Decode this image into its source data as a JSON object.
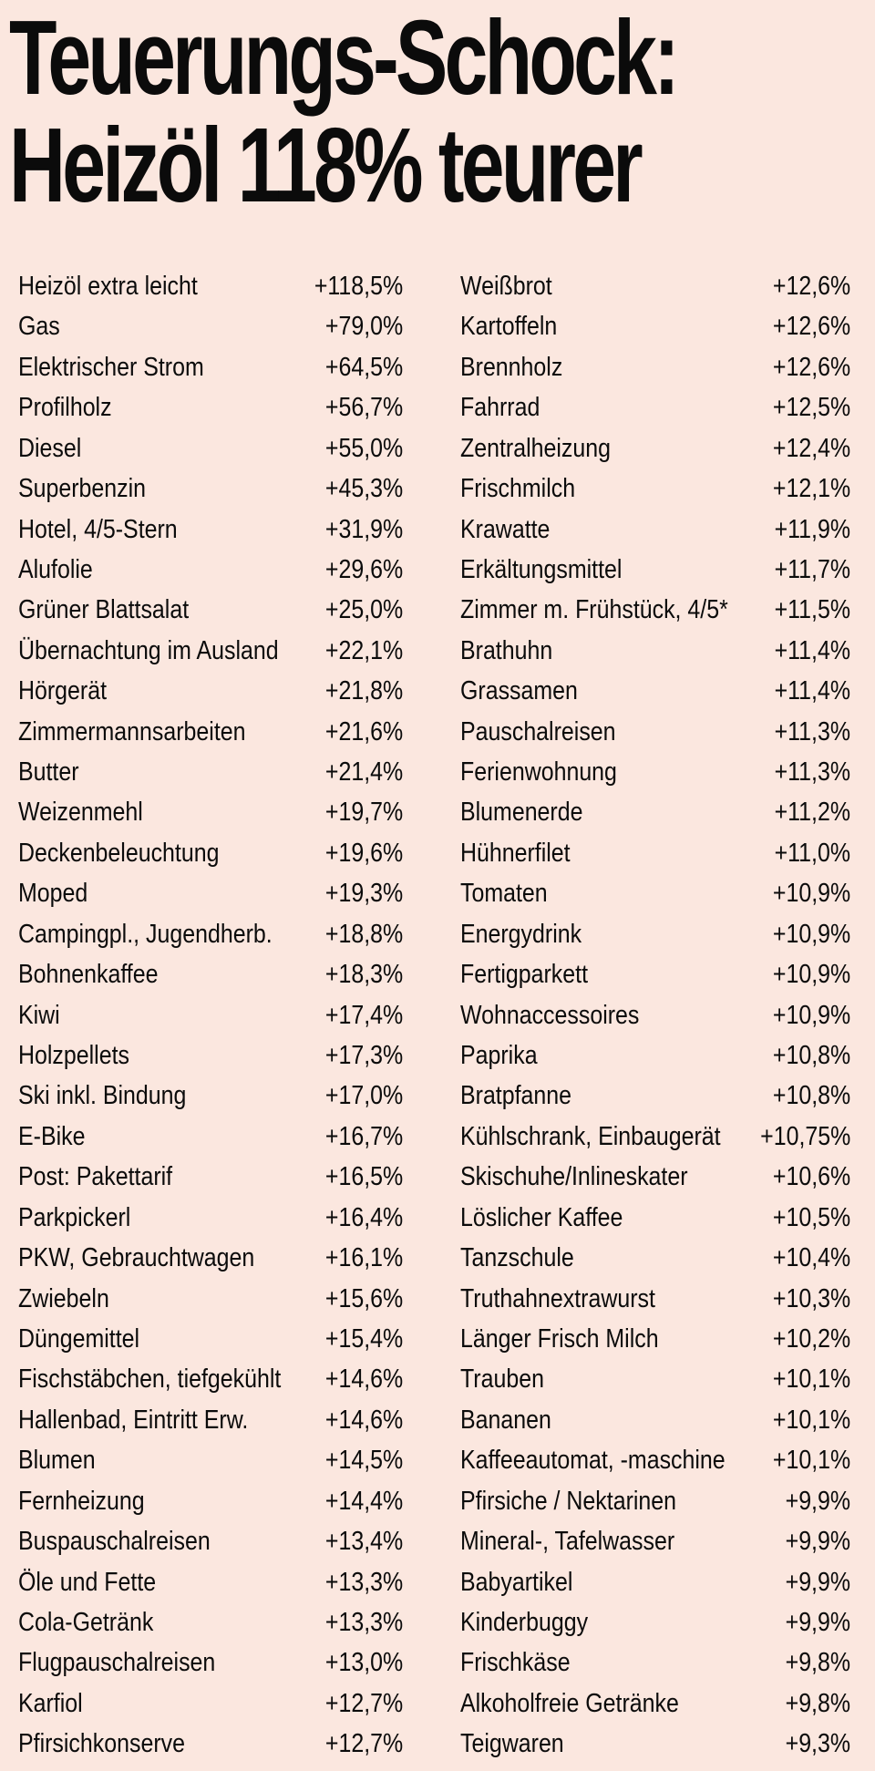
{
  "headline": {
    "line1": "Teuerungs-Schock:",
    "line2": "Heizöl 118% teurer"
  },
  "left_items": [
    {
      "label": "Heizöl extra leicht",
      "value": "+118,5%"
    },
    {
      "label": "Gas",
      "value": "+79,0%"
    },
    {
      "label": "Elektrischer Strom",
      "value": "+64,5%"
    },
    {
      "label": "Profilholz",
      "value": "+56,7%"
    },
    {
      "label": "Diesel",
      "value": "+55,0%"
    },
    {
      "label": "Superbenzin",
      "value": "+45,3%"
    },
    {
      "label": "Hotel, 4/5-Stern",
      "value": "+31,9%"
    },
    {
      "label": "Alufolie",
      "value": "+29,6%"
    },
    {
      "label": "Grüner Blattsalat",
      "value": "+25,0%"
    },
    {
      "label": "Übernachtung im Ausland",
      "value": "+22,1%"
    },
    {
      "label": "Hörgerät",
      "value": "+21,8%"
    },
    {
      "label": "Zimmermannsarbeiten",
      "value": "+21,6%"
    },
    {
      "label": "Butter",
      "value": "+21,4%"
    },
    {
      "label": "Weizenmehl",
      "value": "+19,7%"
    },
    {
      "label": "Deckenbeleuchtung",
      "value": "+19,6%"
    },
    {
      "label": "Moped",
      "value": "+19,3%"
    },
    {
      "label": "Campingpl., Jugendherb.",
      "value": "+18,8%"
    },
    {
      "label": "Bohnenkaffee",
      "value": "+18,3%"
    },
    {
      "label": "Kiwi",
      "value": "+17,4%"
    },
    {
      "label": "Holzpellets",
      "value": "+17,3%"
    },
    {
      "label": "Ski inkl. Bindung",
      "value": "+17,0%"
    },
    {
      "label": "E-Bike",
      "value": "+16,7%"
    },
    {
      "label": "Post: Pakettarif",
      "value": "+16,5%"
    },
    {
      "label": "Parkpickerl",
      "value": "+16,4%"
    },
    {
      "label": "PKW, Gebrauchtwagen",
      "value": "+16,1%"
    },
    {
      "label": "Zwiebeln",
      "value": "+15,6%"
    },
    {
      "label": "Düngemittel",
      "value": "+15,4%"
    },
    {
      "label": "Fischstäbchen, tiefgekühlt",
      "value": "+14,6%"
    },
    {
      "label": "Hallenbad, Eintritt Erw.",
      "value": "+14,6%"
    },
    {
      "label": "Blumen",
      "value": "+14,5%"
    },
    {
      "label": "Fernheizung",
      "value": "+14,4%"
    },
    {
      "label": "Buspauschalreisen",
      "value": "+13,4%"
    },
    {
      "label": "Öle und Fette",
      "value": "+13,3%"
    },
    {
      "label": "Cola-Getränk",
      "value": "+13,3%"
    },
    {
      "label": "Flugpauschalreisen",
      "value": "+13,0%"
    },
    {
      "label": "Karfiol",
      "value": "+12,7%"
    },
    {
      "label": "Pfirsichkonserve",
      "value": "+12,7%"
    }
  ],
  "right_items": [
    {
      "label": "Weißbrot",
      "value": "+12,6%"
    },
    {
      "label": "Kartoffeln",
      "value": "+12,6%"
    },
    {
      "label": "Brennholz",
      "value": "+12,6%"
    },
    {
      "label": "Fahrrad",
      "value": "+12,5%"
    },
    {
      "label": "Zentralheizung",
      "value": "+12,4%"
    },
    {
      "label": "Frischmilch",
      "value": "+12,1%"
    },
    {
      "label": "Krawatte",
      "value": "+11,9%"
    },
    {
      "label": "Erkältungsmittel",
      "value": "+11,7%"
    },
    {
      "label": "Zimmer m. Frühstück, 4/5*",
      "value": "+11,5%"
    },
    {
      "label": "Brathuhn",
      "value": "+11,4%"
    },
    {
      "label": "Grassamen",
      "value": "+11,4%"
    },
    {
      "label": "Pauschalreisen",
      "value": "+11,3%"
    },
    {
      "label": "Ferienwohnung",
      "value": "+11,3%"
    },
    {
      "label": "Blumenerde",
      "value": "+11,2%"
    },
    {
      "label": "Hühnerfilet",
      "value": "+11,0%"
    },
    {
      "label": "Tomaten",
      "value": "+10,9%"
    },
    {
      "label": "Energydrink",
      "value": "+10,9%"
    },
    {
      "label": "Fertigparkett",
      "value": "+10,9%"
    },
    {
      "label": "Wohnaccessoires",
      "value": "+10,9%"
    },
    {
      "label": "Paprika",
      "value": "+10,8%"
    },
    {
      "label": "Bratpfanne",
      "value": "+10,8%"
    },
    {
      "label": "Kühlschrank, Einbaugerät",
      "value": "+10,75%"
    },
    {
      "label": "Skischuhe/Inlineskater",
      "value": "+10,6%"
    },
    {
      "label": "Löslicher Kaffee",
      "value": "+10,5%"
    },
    {
      "label": "Tanzschule",
      "value": "+10,4%"
    },
    {
      "label": "Truthahnextrawurst",
      "value": "+10,3%"
    },
    {
      "label": "Länger Frisch Milch",
      "value": "+10,2%"
    },
    {
      "label": "Trauben",
      "value": "+10,1%"
    },
    {
      "label": "Bananen",
      "value": "+10,1%"
    },
    {
      "label": "Kaffeeautomat, -maschine",
      "value": "+10,1%"
    },
    {
      "label": "Pfirsiche / Nektarinen",
      "value": "+9,9%"
    },
    {
      "label": "Mineral-, Tafelwasser",
      "value": "+9,9%"
    },
    {
      "label": "Babyartikel",
      "value": "+9,9%"
    },
    {
      "label": "Kinderbuggy",
      "value": "+9,9%"
    },
    {
      "label": "Frischkäse",
      "value": "+9,8%"
    },
    {
      "label": "Alkoholfreie Getränke",
      "value": "+9,8%"
    },
    {
      "label": "Teigwaren",
      "value": "+9,3%"
    }
  ]
}
